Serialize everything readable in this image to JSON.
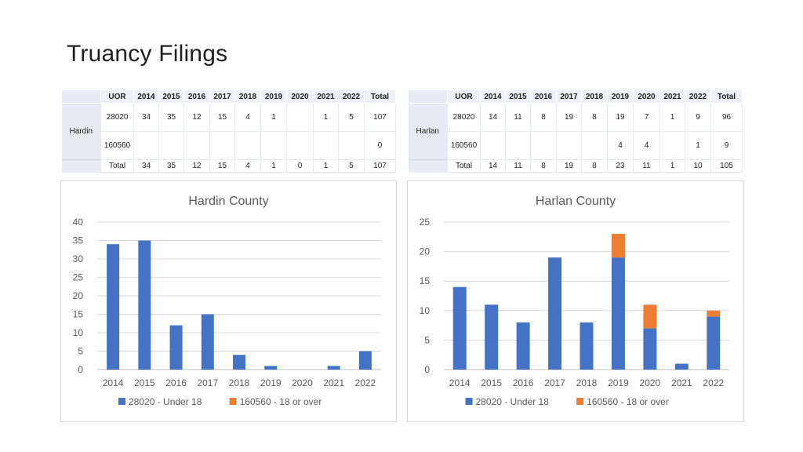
{
  "slide": {
    "title": "Truancy Filings"
  },
  "tables": {
    "hardin": {
      "county": "Hardin",
      "header": [
        "UOR",
        "2014",
        "2015",
        "2016",
        "2017",
        "2018",
        "2019",
        "2020",
        "2021",
        "2022",
        "Total"
      ],
      "rows": [
        [
          "28020",
          "34",
          "35",
          "12",
          "15",
          "4",
          "1",
          "",
          "1",
          "5",
          "107"
        ],
        [
          "160560",
          "",
          "",
          "",
          "",
          "",
          "",
          "",
          "",
          "",
          "0"
        ],
        [
          "Total",
          "34",
          "35",
          "12",
          "15",
          "4",
          "1",
          "0",
          "1",
          "5",
          "107"
        ]
      ]
    },
    "harlan": {
      "county": "Harlan",
      "header": [
        "UOR",
        "2014",
        "2015",
        "2016",
        "2017",
        "2018",
        "2019",
        "2020",
        "2021",
        "2022",
        "Total"
      ],
      "rows": [
        [
          "28020",
          "14",
          "11",
          "8",
          "19",
          "8",
          "19",
          "7",
          "1",
          "9",
          "96"
        ],
        [
          "160560",
          "",
          "",
          "",
          "",
          "",
          "4",
          "4",
          "",
          "1",
          "9"
        ],
        [
          "Total",
          "14",
          "11",
          "8",
          "19",
          "8",
          "23",
          "11",
          "1",
          "10",
          "105"
        ]
      ]
    }
  },
  "chart_data": [
    {
      "type": "bar",
      "stacked": true,
      "title": "Hardin County",
      "categories": [
        "2014",
        "2015",
        "2016",
        "2017",
        "2018",
        "2019",
        "2020",
        "2021",
        "2022"
      ],
      "series": [
        {
          "name": "28020 - Under 18",
          "color": "#4472c4",
          "values": [
            34,
            35,
            12,
            15,
            4,
            1,
            0,
            1,
            5
          ]
        },
        {
          "name": "160560 - 18 or over",
          "color": "#ed7d31",
          "values": [
            0,
            0,
            0,
            0,
            0,
            0,
            0,
            0,
            0
          ]
        }
      ],
      "ylim": [
        0,
        40
      ],
      "yticks": [
        "0",
        "5",
        "10",
        "15",
        "20",
        "25",
        "30",
        "35",
        "40"
      ],
      "grid": true,
      "legend": "bottom"
    },
    {
      "type": "bar",
      "stacked": true,
      "title": "Harlan County",
      "categories": [
        "2014",
        "2015",
        "2016",
        "2017",
        "2018",
        "2019",
        "2020",
        "2021",
        "2022"
      ],
      "series": [
        {
          "name": "28020 - Under 18",
          "color": "#4472c4",
          "values": [
            14,
            11,
            8,
            19,
            8,
            19,
            7,
            1,
            9
          ]
        },
        {
          "name": "160560 - 18 or over",
          "color": "#ed7d31",
          "values": [
            0,
            0,
            0,
            0,
            0,
            4,
            4,
            0,
            1
          ]
        }
      ],
      "ylim": [
        0,
        25
      ],
      "yticks": [
        "0",
        "5",
        "10",
        "15",
        "20",
        "25"
      ],
      "grid": true,
      "legend": "bottom"
    }
  ]
}
